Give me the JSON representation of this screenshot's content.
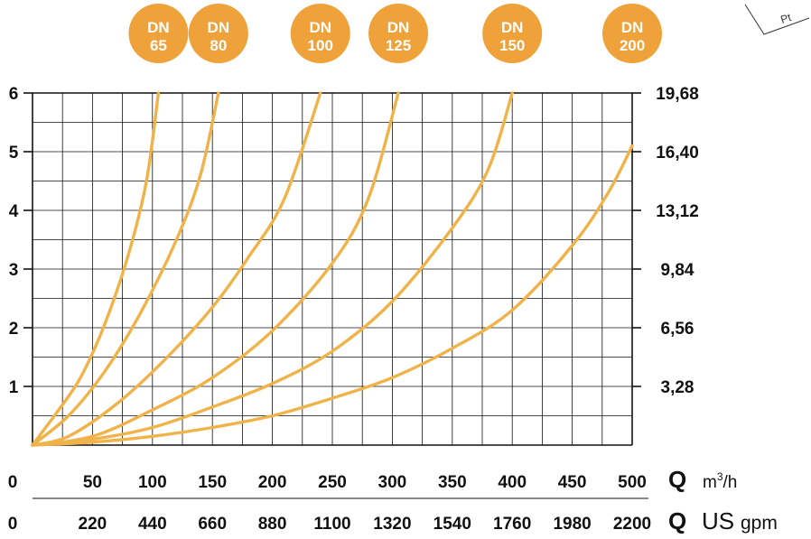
{
  "chart_data": {
    "type": "line",
    "title": "",
    "series_color": "#f0b34a",
    "badge_color": "#f0a23a",
    "pt_label": "Pt",
    "x": {
      "range": [
        0,
        500
      ],
      "primary_ticks": [
        "0",
        "50",
        "100",
        "150",
        "200",
        "250",
        "300",
        "350",
        "400",
        "450",
        "500"
      ],
      "primary_symbol": "Q",
      "primary_unit_base": "m",
      "primary_unit_sup": "3",
      "primary_unit_rest": "/h",
      "secondary_ticks": [
        "0",
        "220",
        "440",
        "660",
        "880",
        "1100",
        "1320",
        "1540",
        "1760",
        "1980",
        "2200"
      ],
      "secondary_symbol": "Q",
      "secondary_unit_big": "US",
      "secondary_unit_small": "gpm"
    },
    "y": {
      "range": [
        0,
        6
      ],
      "left_ticks": [
        "6",
        "5",
        "4",
        "3",
        "2",
        "1"
      ],
      "right_ticks": [
        "19,68",
        "16,40",
        "13,12",
        "9,84",
        "6,56",
        "3,28"
      ]
    },
    "grid": true,
    "series": [
      {
        "name": "DN 65",
        "label_top": "DN",
        "label_bottom": "65",
        "points": [
          [
            0,
            0
          ],
          [
            20,
            0.55
          ],
          [
            40,
            1.15
          ],
          [
            60,
            2.05
          ],
          [
            80,
            3.25
          ],
          [
            95,
            4.5
          ],
          [
            105,
            6.0
          ]
        ]
      },
      {
        "name": "DN 80",
        "label_top": "DN",
        "label_bottom": "80",
        "points": [
          [
            0,
            0
          ],
          [
            30,
            0.5
          ],
          [
            60,
            1.25
          ],
          [
            90,
            2.25
          ],
          [
            120,
            3.5
          ],
          [
            140,
            4.6
          ],
          [
            155,
            6.0
          ]
        ]
      },
      {
        "name": "DN 100",
        "label_top": "DN",
        "label_bottom": "100",
        "points": [
          [
            0,
            0
          ],
          [
            30,
            0.15
          ],
          [
            70,
            0.7
          ],
          [
            110,
            1.45
          ],
          [
            150,
            2.35
          ],
          [
            180,
            3.2
          ],
          [
            210,
            4.2
          ],
          [
            240,
            6.0
          ]
        ]
      },
      {
        "name": "DN 125",
        "label_top": "DN",
        "label_bottom": "125",
        "points": [
          [
            0,
            0
          ],
          [
            50,
            0.15
          ],
          [
            100,
            0.6
          ],
          [
            150,
            1.15
          ],
          [
            200,
            1.95
          ],
          [
            250,
            3.1
          ],
          [
            280,
            4.2
          ],
          [
            305,
            6.0
          ]
        ]
      },
      {
        "name": "DN 150",
        "label_top": "DN",
        "label_bottom": "150",
        "points": [
          [
            0,
            0
          ],
          [
            50,
            0.1
          ],
          [
            100,
            0.3
          ],
          [
            150,
            0.65
          ],
          [
            200,
            1.05
          ],
          [
            250,
            1.6
          ],
          [
            300,
            2.45
          ],
          [
            350,
            3.7
          ],
          [
            380,
            4.7
          ],
          [
            400,
            6.0
          ]
        ]
      },
      {
        "name": "DN 200",
        "label_top": "DN",
        "label_bottom": "200",
        "points": [
          [
            0,
            0
          ],
          [
            50,
            0.05
          ],
          [
            100,
            0.15
          ],
          [
            150,
            0.3
          ],
          [
            200,
            0.5
          ],
          [
            250,
            0.8
          ],
          [
            300,
            1.15
          ],
          [
            350,
            1.65
          ],
          [
            400,
            2.3
          ],
          [
            450,
            3.4
          ],
          [
            480,
            4.3
          ],
          [
            500,
            5.1
          ]
        ]
      }
    ]
  }
}
